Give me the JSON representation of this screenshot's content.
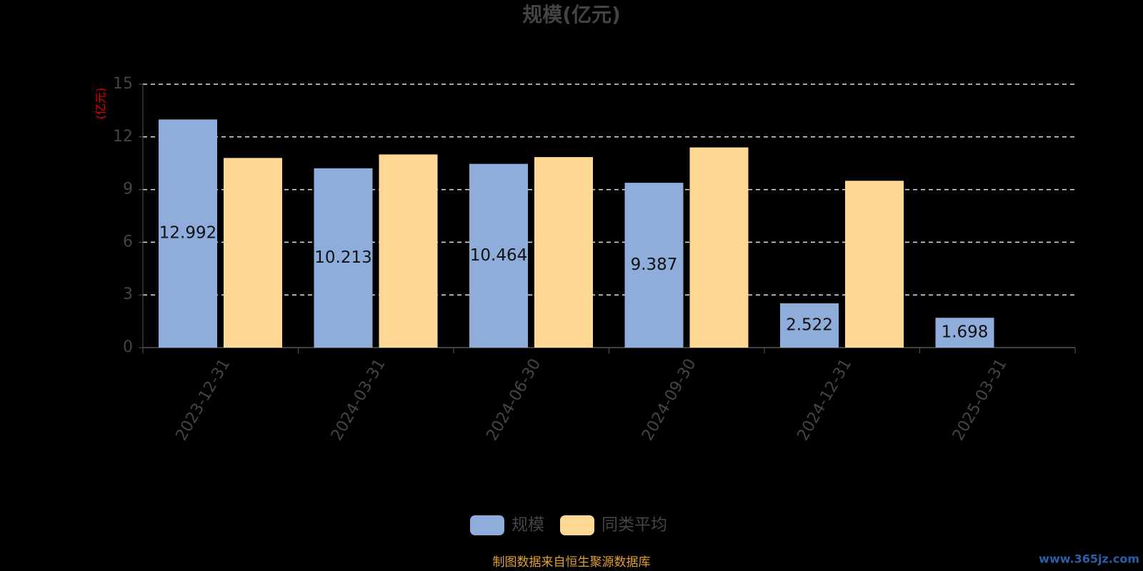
{
  "chart_data": {
    "type": "bar",
    "title": "规模(亿元)",
    "y_label": "(亿元)",
    "categories": [
      "2023-12-31",
      "2024-03-31",
      "2024-06-30",
      "2024-09-30",
      "2024-12-31",
      "2025-03-31"
    ],
    "series": [
      {
        "name": "规模",
        "color": "#8eaddb",
        "values": [
          12.992,
          10.213,
          10.464,
          9.387,
          2.522,
          1.698
        ],
        "show_labels": true
      },
      {
        "name": "同类平均",
        "color": "#ffd993",
        "values": [
          10.8,
          11.0,
          10.85,
          11.4,
          9.5,
          null
        ],
        "show_labels": false
      }
    ],
    "ylim": [
      0,
      15
    ],
    "yticks": [
      0,
      3,
      6,
      9,
      12,
      15
    ],
    "grid": true,
    "source": "制图数据来自恒生聚源数据库",
    "watermark": "www.365jz.com"
  }
}
